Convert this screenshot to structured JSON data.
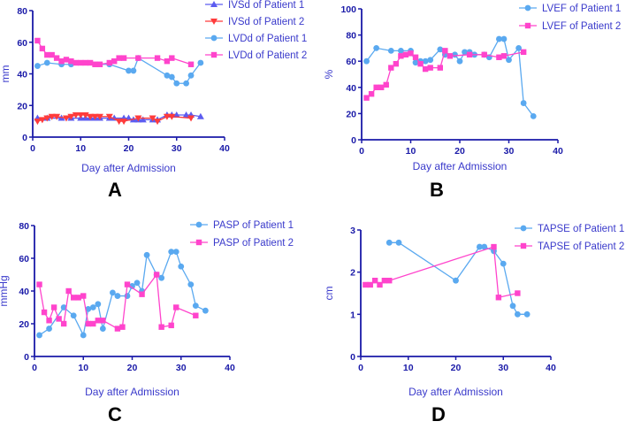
{
  "colors": {
    "axis": "#1a1aa8",
    "p1": "#5aa9f0",
    "p2": "#ff44cc",
    "ivsd_p1": "#5c5cf0",
    "ivsd_p2": "#ff3b3b"
  },
  "chart_data": [
    {
      "panel": "A",
      "type": "line",
      "xlabel": "Day after Admission",
      "ylabel": "mm",
      "xlim": [
        0,
        40
      ],
      "ylim": [
        0,
        80
      ],
      "xticks": [
        0,
        10,
        20,
        30,
        40
      ],
      "yticks": [
        0,
        20,
        40,
        60,
        80
      ],
      "legend": "top-right",
      "series": [
        {
          "name": "IVSd of Patient 1",
          "color": "#5c5cf0",
          "marker": "triangle-up",
          "x": [
            1,
            3,
            6,
            8,
            10,
            11,
            12,
            13,
            14,
            16,
            17,
            19,
            20,
            21,
            22,
            23,
            25,
            26,
            28,
            29,
            30,
            32,
            33,
            35
          ],
          "y": [
            12,
            12,
            12,
            12,
            12,
            12,
            12,
            12,
            12,
            12,
            12,
            12,
            12,
            11,
            11,
            11,
            11,
            11,
            14,
            14,
            14,
            14,
            14,
            13
          ]
        },
        {
          "name": "IVSd of Patient 2",
          "color": "#ff3b3b",
          "marker": "triangle-down",
          "x": [
            1,
            2,
            3,
            4,
            5,
            7,
            8,
            9,
            10,
            11,
            12,
            13,
            14,
            16,
            18,
            19,
            22,
            25,
            26,
            28,
            29,
            33
          ],
          "y": [
            10,
            11,
            12,
            13,
            13,
            12,
            13,
            14,
            14,
            14,
            13,
            13,
            13,
            13,
            10,
            10,
            12,
            12,
            10,
            13,
            13,
            12
          ]
        },
        {
          "name": "LVDd of Patient 1",
          "color": "#5aa9f0",
          "marker": "circle",
          "x": [
            1,
            3,
            6,
            8,
            16,
            20,
            21,
            22,
            28,
            29,
            30,
            32,
            33,
            35
          ],
          "y": [
            45,
            47,
            46,
            46,
            46,
            42,
            42,
            50,
            39,
            38,
            34,
            34,
            39,
            47
          ]
        },
        {
          "name": "LVDd of Patient 2",
          "color": "#ff44cc",
          "marker": "square",
          "x": [
            1,
            2,
            3,
            4,
            5,
            6,
            7,
            8,
            9,
            10,
            11,
            12,
            13,
            14,
            16,
            17,
            18,
            19,
            22,
            26,
            28,
            29,
            33
          ],
          "y": [
            61,
            56,
            52,
            52,
            50,
            48,
            49,
            48,
            47,
            47,
            47,
            47,
            46,
            46,
            47,
            48,
            50,
            50,
            50,
            50,
            48,
            50,
            46
          ]
        }
      ]
    },
    {
      "panel": "B",
      "type": "line",
      "xlabel": "Day after Admission",
      "ylabel": "%",
      "xlim": [
        0,
        40
      ],
      "ylim": [
        0,
        100
      ],
      "xticks": [
        0,
        10,
        20,
        30,
        40
      ],
      "yticks": [
        0,
        20,
        40,
        60,
        80,
        100
      ],
      "legend": "top-right",
      "series": [
        {
          "name": "LVEF of Patient 1",
          "color": "#5aa9f0",
          "marker": "circle",
          "x": [
            1,
            3,
            6,
            8,
            10,
            11,
            12,
            13,
            14,
            16,
            17,
            19,
            20,
            21,
            22,
            23,
            25,
            26,
            28,
            29,
            30,
            32,
            33,
            35
          ],
          "y": [
            60,
            70,
            68,
            68,
            68,
            59,
            60,
            60,
            61,
            69,
            65,
            65,
            60,
            67,
            67,
            65,
            65,
            63,
            77,
            77,
            61,
            70,
            28,
            18
          ]
        },
        {
          "name": "LVEF of Patient 2",
          "color": "#ff44cc",
          "marker": "square",
          "x": [
            1,
            2,
            3,
            4,
            5,
            6,
            7,
            8,
            9,
            10,
            11,
            12,
            13,
            14,
            16,
            17,
            18,
            22,
            25,
            28,
            29,
            33
          ],
          "y": [
            32,
            35,
            40,
            40,
            42,
            55,
            58,
            64,
            65,
            66,
            63,
            58,
            54,
            55,
            55,
            68,
            64,
            65,
            65,
            63,
            64,
            67
          ]
        }
      ]
    },
    {
      "panel": "C",
      "type": "line",
      "xlabel": "Day after Admission",
      "ylabel": "mmHg",
      "xlim": [
        0,
        40
      ],
      "ylim": [
        0,
        80
      ],
      "xticks": [
        0,
        10,
        20,
        30,
        40
      ],
      "yticks": [
        0,
        20,
        40,
        60,
        80
      ],
      "legend": "top-right",
      "series": [
        {
          "name": "PASP of Patient 1",
          "color": "#5aa9f0",
          "marker": "circle",
          "x": [
            1,
            3,
            6,
            8,
            10,
            11,
            12,
            13,
            14,
            16,
            17,
            19,
            20,
            21,
            22,
            23,
            25,
            26,
            28,
            29,
            30,
            32,
            33,
            35
          ],
          "y": [
            13,
            17,
            30,
            25,
            13,
            29,
            30,
            32,
            17,
            39,
            37,
            37,
            43,
            45,
            40,
            62,
            50,
            48,
            64,
            64,
            55,
            44,
            31,
            28
          ]
        },
        {
          "name": "PASP of Patient 2",
          "color": "#ff44cc",
          "marker": "square",
          "x": [
            1,
            2,
            3,
            4,
            5,
            6,
            7,
            8,
            9,
            10,
            11,
            12,
            13,
            14,
            17,
            18,
            19,
            22,
            25,
            26,
            28,
            29,
            33
          ],
          "y": [
            44,
            27,
            22,
            30,
            23,
            20,
            40,
            36,
            36,
            37,
            20,
            20,
            22,
            22,
            17,
            18,
            44,
            38,
            50,
            18,
            19,
            30,
            25
          ]
        }
      ]
    },
    {
      "panel": "D",
      "type": "line",
      "xlabel": "Day after Admission",
      "ylabel": "cm",
      "xlim": [
        0,
        40
      ],
      "ylim": [
        0,
        3
      ],
      "xticks": [
        0,
        10,
        20,
        30,
        40
      ],
      "yticks": [
        0,
        1,
        2,
        3
      ],
      "legend": "top-right",
      "series": [
        {
          "name": "TAPSE of Patient 1",
          "color": "#5aa9f0",
          "marker": "circle",
          "x": [
            6,
            8,
            20,
            25,
            26,
            28,
            30,
            32,
            33,
            35
          ],
          "y": [
            2.7,
            2.7,
            1.8,
            2.6,
            2.6,
            2.5,
            2.2,
            1.2,
            1.0,
            1.0
          ]
        },
        {
          "name": "TAPSE of Patient 2",
          "color": "#ff44cc",
          "marker": "square",
          "x": [
            1,
            2,
            3,
            4,
            5,
            6,
            28,
            29,
            33
          ],
          "y": [
            1.7,
            1.7,
            1.8,
            1.7,
            1.8,
            1.8,
            2.6,
            1.4,
            1.5
          ]
        }
      ]
    }
  ]
}
